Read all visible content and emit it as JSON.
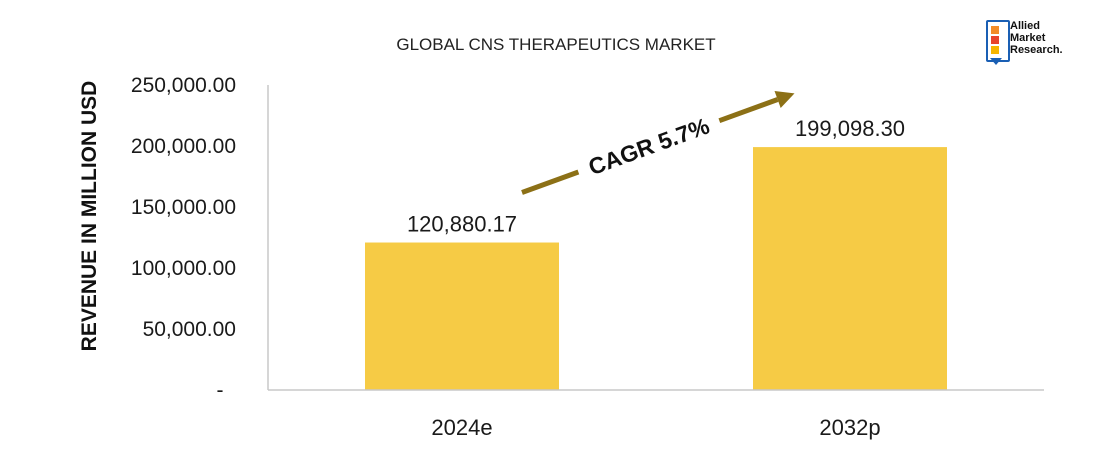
{
  "logo": {
    "line1": "Allied",
    "line2": "Market",
    "line3": "Research."
  },
  "colors": {
    "bar": "#f6cb45",
    "arrow": "#8c7016",
    "axis": "#c8c8c8"
  },
  "chart_data": {
    "type": "bar",
    "title": "GLOBAL CNS THERAPEUTICS MARKET",
    "xlabel": "",
    "ylabel": "REVENUE IN MILLION USD",
    "categories": [
      "2024e",
      "2032p"
    ],
    "values": [
      120880.17,
      199098.3
    ],
    "value_labels": [
      "120,880.17",
      "199,098.30"
    ],
    "ylim": [
      0,
      250000
    ],
    "yticks": [
      0,
      50000,
      100000,
      150000,
      200000,
      250000
    ],
    "ytick_labels": [
      "-",
      "50,000.00",
      "100,000.00",
      "150,000.00",
      "200,000.00",
      "250,000.00"
    ],
    "grid": false,
    "legend": "none",
    "annotation": "CAGR 5.7%"
  }
}
